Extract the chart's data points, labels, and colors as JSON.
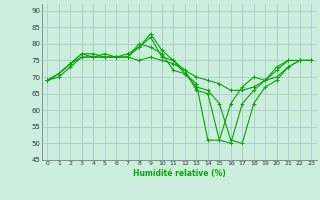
{
  "xlabel": "Humidité relative (%)",
  "background_color": "#cceedd",
  "grid_color": "#aacccc",
  "line_color": "#00aa00",
  "ylim": [
    45,
    92
  ],
  "xlim": [
    -0.5,
    23.5
  ],
  "yticks": [
    45,
    50,
    55,
    60,
    65,
    70,
    75,
    80,
    85,
    90
  ],
  "xticks": [
    0,
    1,
    2,
    3,
    4,
    5,
    6,
    7,
    8,
    9,
    10,
    11,
    12,
    13,
    14,
    15,
    16,
    17,
    18,
    19,
    20,
    21,
    22,
    23
  ],
  "series": [
    [
      69,
      71,
      74,
      77,
      76,
      76,
      76,
      77,
      79,
      83,
      78,
      75,
      71,
      67,
      66,
      62,
      51,
      50,
      62,
      67,
      69,
      73,
      75,
      75
    ],
    [
      69,
      71,
      74,
      77,
      77,
      76,
      76,
      76,
      79,
      82,
      76,
      75,
      72,
      66,
      65,
      51,
      50,
      62,
      66,
      69,
      72,
      75,
      75,
      75
    ],
    [
      69,
      71,
      74,
      76,
      76,
      76,
      76,
      76,
      80,
      79,
      77,
      72,
      71,
      68,
      51,
      51,
      62,
      67,
      70,
      69,
      73,
      75,
      75,
      75
    ],
    [
      69,
      70,
      73,
      76,
      76,
      77,
      76,
      76,
      75,
      76,
      75,
      74,
      72,
      70,
      69,
      68,
      66,
      66,
      67,
      69,
      70,
      73,
      75,
      75
    ]
  ]
}
